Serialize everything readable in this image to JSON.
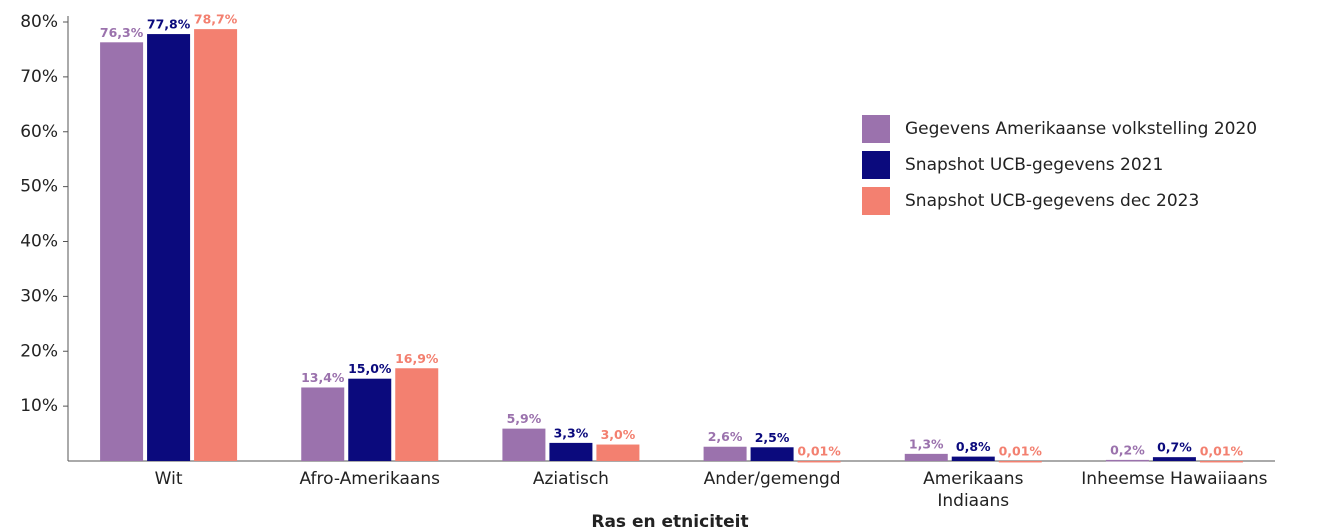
{
  "chart_data": {
    "type": "bar",
    "x_label": "Ras en etniciteit",
    "categories": [
      "Wit",
      "Afro-Amerikaans",
      "Aziatisch",
      "Ander/gemengd",
      "Amerikaans\nIndiaans",
      "Inheemse Hawaiiaans"
    ],
    "series": [
      {
        "name": "Gegevens Amerikaanse volkstelling 2020",
        "color": "#9b72ad",
        "values": [
          76.3,
          13.4,
          5.9,
          2.6,
          1.3,
          0.2
        ],
        "value_labels": [
          "76,3%",
          "13,4%",
          "5,9%",
          "2,6%",
          "1,3%",
          "0,2%"
        ]
      },
      {
        "name": "Snapshot UCB-gegevens 2021",
        "color": "#0b0a7d",
        "values": [
          77.8,
          15.0,
          3.3,
          2.5,
          0.8,
          0.7
        ],
        "value_labels": [
          "77,8%",
          "15,0%",
          "3,3%",
          "2,5%",
          "0,8%",
          "0,7%"
        ]
      },
      {
        "name": "Snapshot UCB-gegevens dec 2023",
        "color": "#f38070",
        "values": [
          78.7,
          16.9,
          3.0,
          0.01,
          0.01,
          0.01
        ],
        "value_labels": [
          "78,7%",
          "16,9%",
          "3,0%",
          "0,01%",
          "0,01%",
          "0,01%"
        ]
      }
    ],
    "ylim": [
      0,
      80
    ],
    "yticks": [
      {
        "value": 10,
        "label": "10%"
      },
      {
        "value": 20,
        "label": "20%"
      },
      {
        "value": 30,
        "label": "30%"
      },
      {
        "value": 40,
        "label": "40%"
      },
      {
        "value": 50,
        "label": "50%"
      },
      {
        "value": 60,
        "label": "60%"
      },
      {
        "value": 70,
        "label": "70%"
      },
      {
        "value": 80,
        "label": "80%"
      }
    ],
    "legend": "right"
  }
}
